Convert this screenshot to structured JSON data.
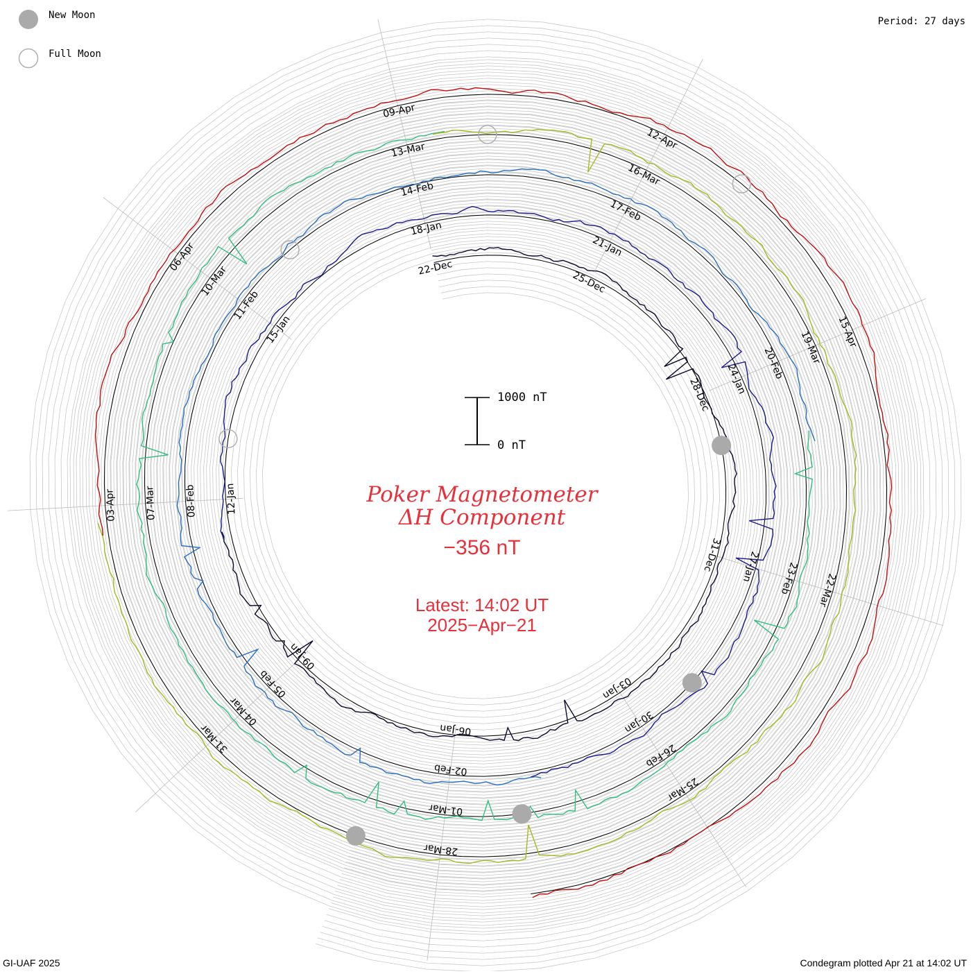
{
  "legend": {
    "new_moon_label": "New Moon",
    "full_moon_label": "Full Moon",
    "new_moon_color": "#aaaaaa"
  },
  "period_label": "Period: 27 days",
  "footer": {
    "left": "GI-UAF 2025",
    "right": "Condegram plotted Apr 21 at 14:02 UT"
  },
  "center": {
    "title_line1": "Poker Magnetometer",
    "title_line2": "ΔH Component",
    "value": "−356 nT",
    "latest_line1": "Latest: 14:02 UT",
    "latest_line2": "2025−Apr−21",
    "text_color": "#e8303a"
  },
  "scale_bar": {
    "top_label": "1000 nT",
    "bottom_label": "0 nT"
  },
  "chart_data": {
    "type": "line",
    "layout": "spiral condegram",
    "period_days": 27,
    "value_unit": "nT",
    "series": [
      {
        "color": "#0a0a2e",
        "date_labels": [
          "22-Dec",
          "25-Dec",
          "28-Dec"
        ]
      },
      {
        "color": "#1a1a8c",
        "date_labels": [
          "31-Dec",
          "03-Jan",
          "06-Jan",
          "09-Jan",
          "12-Jan",
          "15-Jan",
          "18-Jan",
          "21-Jan",
          "24-Jan"
        ]
      },
      {
        "color": "#2a6fbf",
        "date_labels": [
          "27-Jan",
          "30-Jan",
          "02-Feb",
          "05-Feb",
          "08-Feb",
          "11-Feb",
          "14-Feb",
          "17-Feb",
          "20-Feb"
        ]
      },
      {
        "color": "#2fbf7f",
        "date_labels": [
          "23-Feb",
          "26-Feb",
          "01-Mar",
          "04-Mar",
          "07-Mar",
          "10-Mar",
          "13-Mar",
          "16-Mar",
          "19-Mar"
        ]
      },
      {
        "color": "#a8b820",
        "date_labels": [
          "22-Mar",
          "25-Mar",
          "28-Mar",
          "31-Mar",
          "03-Apr",
          "06-Apr",
          "09-Apr",
          "12-Apr",
          "15-Apr"
        ]
      },
      {
        "color": "#c01010",
        "date_labels": []
      }
    ],
    "moon_phases": {
      "new_moon": [
        "29-Dec",
        "29-Jan",
        "28-Feb",
        "29-Mar"
      ],
      "full_moon": [
        "13-Jan",
        "12-Feb",
        "14-Mar",
        "13-Apr"
      ]
    }
  }
}
